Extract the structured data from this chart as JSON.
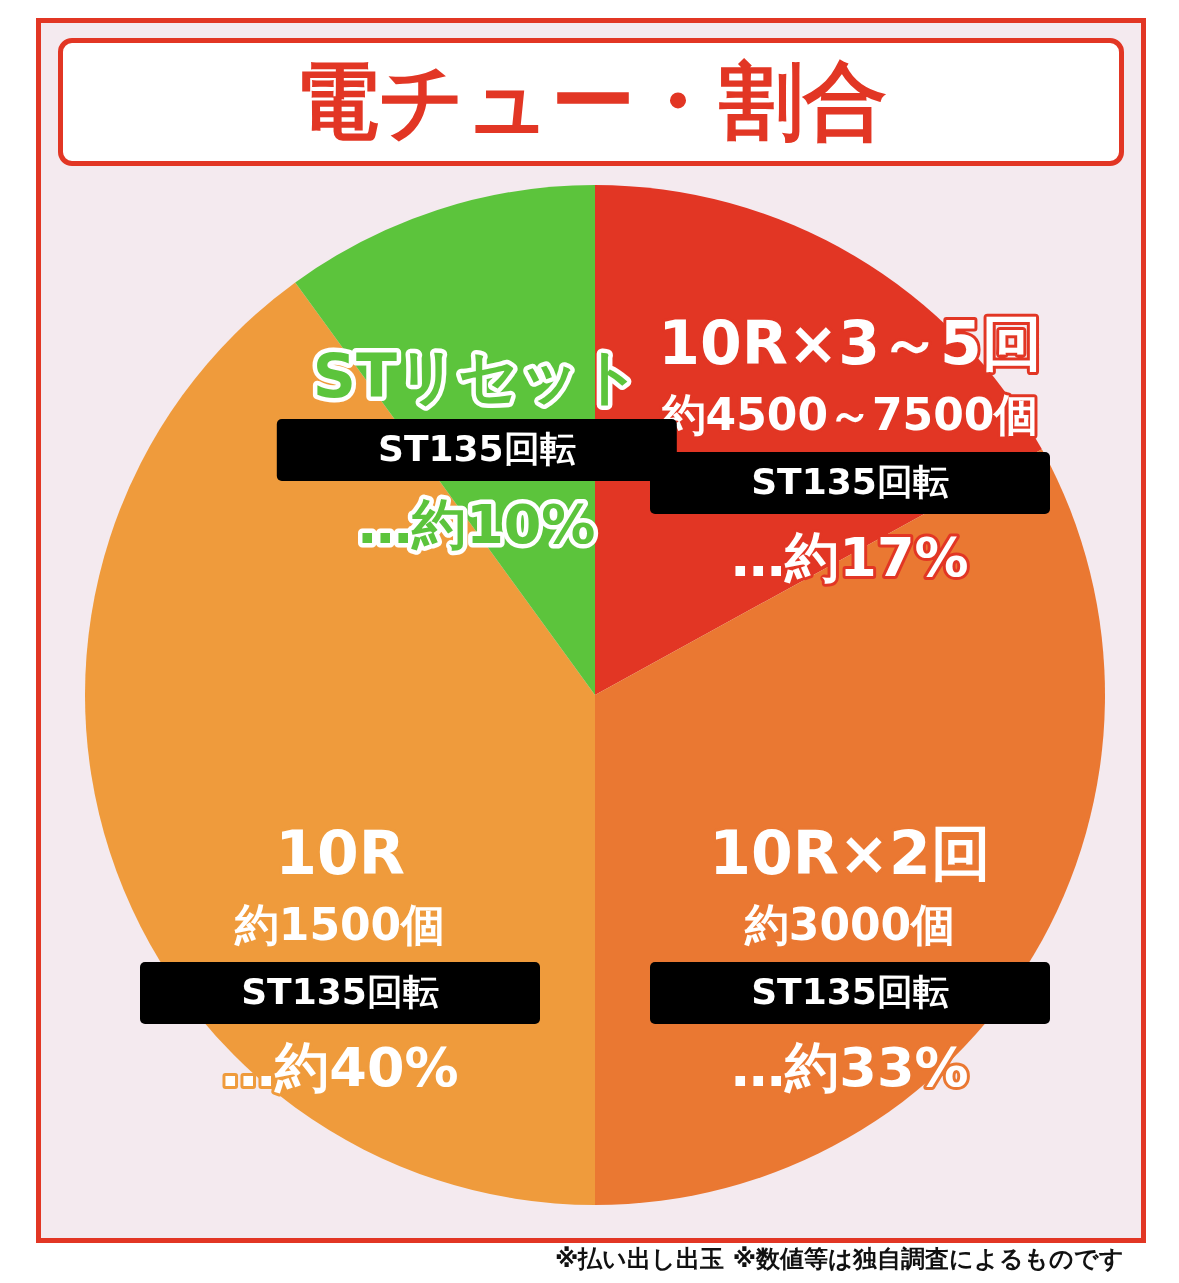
{
  "chart_data": {
    "type": "pie",
    "title": "電チュー・割合",
    "categories": [
      "10R×3～5回",
      "10R×2回",
      "10R",
      "STリセット"
    ],
    "values": [
      17,
      33,
      40,
      10
    ],
    "colors": [
      "#e23624",
      "#ea7832",
      "#ef9b3c",
      "#5cc43c"
    ],
    "value_labels": [
      "…約17%",
      "…約33%",
      "…約40%",
      "…約10%"
    ],
    "annotations": [
      {
        "text": "約4500～7500個",
        "x": "10R×3～5回"
      },
      {
        "text": "ST135回転",
        "x": "10R×3～5回"
      },
      {
        "text": "約3000個",
        "x": "10R×2回"
      },
      {
        "text": "ST135回転",
        "x": "10R×2回"
      },
      {
        "text": "約1500個",
        "x": "10R"
      },
      {
        "text": "ST135回転",
        "x": "10R"
      },
      {
        "text": "ST135回転",
        "x": "STリセット"
      },
      "※払い出し出玉 ※数値等は独自調査によるものです"
    ]
  }
}
